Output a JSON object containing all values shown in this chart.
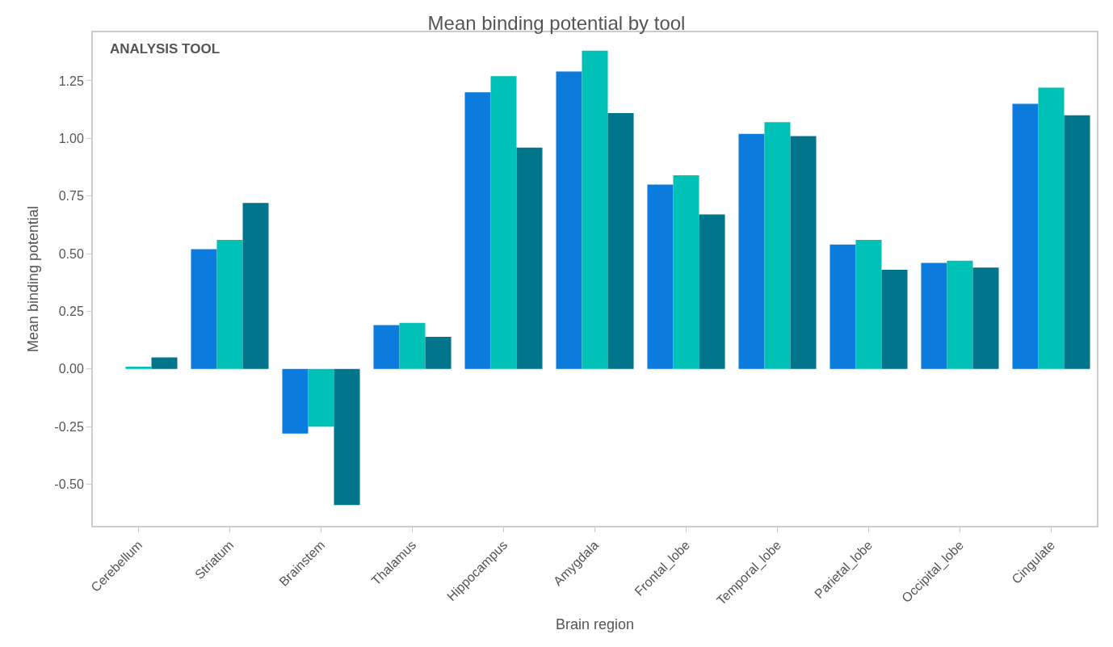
{
  "chart_data": {
    "type": "bar",
    "title": "Mean binding potential by tool",
    "xlabel": "Brain region",
    "ylabel": "Mean binding potential",
    "legend_title": "ANALYSIS TOOL",
    "categories": [
      "Cerebellum",
      "Striatum",
      "Brainstem",
      "Thalamus",
      "Hippocampus",
      "Amygdala",
      "Frontal_lobe",
      "Temporal_lobe",
      "Parietal_lobe",
      "Occipital_lobe",
      "Cingulate"
    ],
    "series": [
      {
        "color": "#0b7bde",
        "values": [
          0.0,
          0.52,
          -0.28,
          0.19,
          1.2,
          1.29,
          0.8,
          1.02,
          0.54,
          0.46,
          1.15
        ]
      },
      {
        "color": "#00c1b6",
        "values": [
          0.01,
          0.56,
          -0.25,
          0.2,
          1.27,
          1.38,
          0.84,
          1.07,
          0.56,
          0.47,
          1.22
        ]
      },
      {
        "color": "#00758c",
        "values": [
          0.05,
          0.72,
          -0.59,
          0.14,
          0.96,
          1.11,
          0.67,
          1.01,
          0.43,
          0.44,
          1.1
        ]
      }
    ],
    "ylim": [
      -0.68,
      1.46
    ],
    "yticks": [
      {
        "value": -0.5,
        "label": "-0.50"
      },
      {
        "value": -0.25,
        "label": "-0.25"
      },
      {
        "value": 0,
        "label": "0.00"
      },
      {
        "value": 0.25,
        "label": "0.25"
      },
      {
        "value": 0.5,
        "label": "0.50"
      },
      {
        "value": 0.75,
        "label": "0.75"
      },
      {
        "value": 1,
        "label": "1.00"
      },
      {
        "value": 1.25,
        "label": "1.25"
      }
    ],
    "legend": false
  }
}
